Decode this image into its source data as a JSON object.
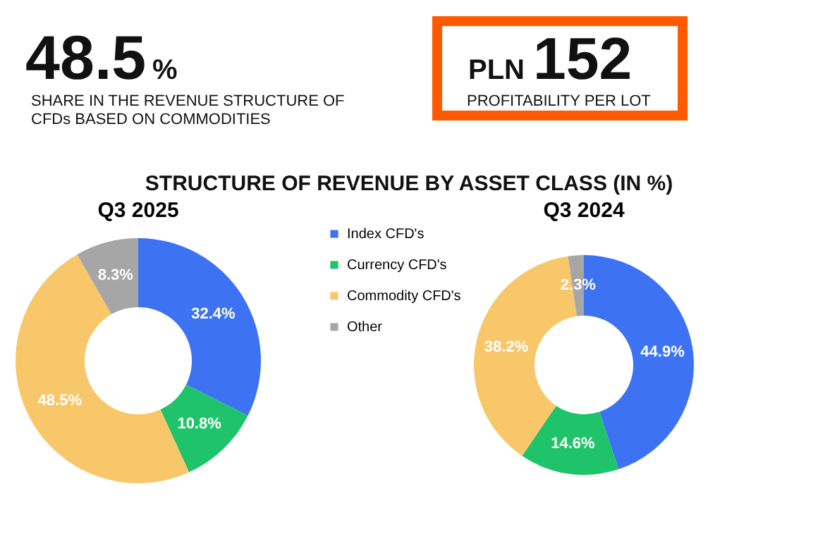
{
  "chart_data": [
    {
      "type": "other",
      "annotations": [
        "48.5",
        "%",
        "SHARE IN THE REVENUE STRUCTURE OF",
        "CFDs BASED ON COMMODITIES",
        "PLN",
        "152",
        "PROFITABILITY PER LOT",
        "STRUCTURE OF REVENUE BY ASSET CLASS (IN %)"
      ]
    },
    {
      "type": "donut",
      "title": "Q3 2025",
      "categories": [
        "Index CFD's",
        "Currency CFD's",
        "Commodity CFD's",
        "Other"
      ],
      "values": [
        32.4,
        10.8,
        48.5,
        8.3
      ],
      "colors": [
        "#3d73f2",
        "#1fc36a",
        "#f8c76a",
        "#a6a6a6"
      ],
      "value_labels": [
        "32.4%",
        "10.8%",
        "48.5%",
        "8.3%"
      ],
      "legend": "right"
    },
    {
      "type": "donut",
      "title": "Q3 2024",
      "categories": [
        null,
        null,
        null,
        null
      ],
      "values": [
        44.9,
        14.6,
        38.2,
        2.3
      ],
      "colors": [
        "#3d73f2",
        "#1fc36a",
        "#f8c76a",
        "#a6a6a6"
      ],
      "value_labels": [
        "44.9%",
        "14.6%",
        "38.2%",
        "2.3%"
      ]
    }
  ]
}
